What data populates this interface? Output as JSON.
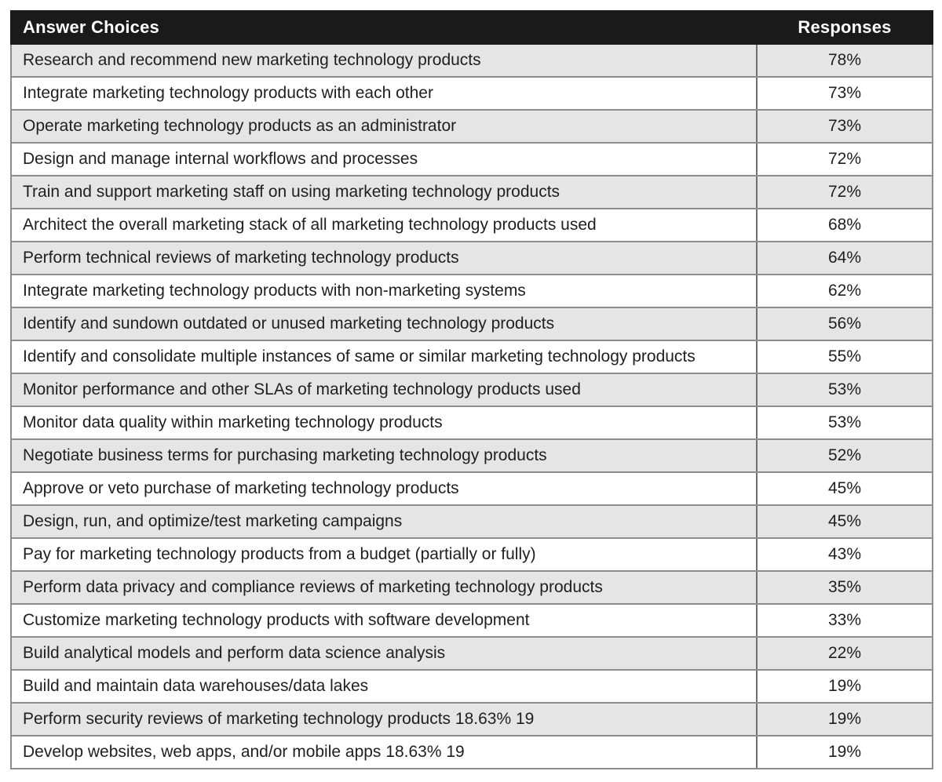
{
  "page": {
    "background": "#ffffff"
  },
  "table": {
    "header": {
      "answer_choices": "Answer Choices",
      "responses": "Responses"
    },
    "rows": [
      {
        "choice": "Research and recommend new marketing technology products",
        "response": "78%"
      },
      {
        "choice": "Integrate marketing technology products with each other",
        "response": "73%"
      },
      {
        "choice": "Operate marketing technology products as an administrator",
        "response": "73%"
      },
      {
        "choice": "Design and manage internal workflows and processes",
        "response": "72%"
      },
      {
        "choice": "Train and support marketing staff on using marketing technology products",
        "response": "72%"
      },
      {
        "choice": "Architect the overall marketing stack of all marketing technology products used",
        "response": "68%"
      },
      {
        "choice": "Perform technical reviews of marketing technology products",
        "response": "64%"
      },
      {
        "choice": "Integrate marketing technology products with non-marketing systems",
        "response": "62%"
      },
      {
        "choice": "Identify and sundown outdated or unused marketing technology products",
        "response": "56%"
      },
      {
        "choice": "Identify and consolidate multiple instances of same or similar marketing technology products",
        "response": "55%"
      },
      {
        "choice": "Monitor performance and other SLAs of marketing technology products used",
        "response": "53%"
      },
      {
        "choice": "Monitor data quality within marketing technology products",
        "response": "53%"
      },
      {
        "choice": "Negotiate business terms for purchasing marketing technology products",
        "response": "52%"
      },
      {
        "choice": "Approve or veto purchase of marketing technology products",
        "response": "45%"
      },
      {
        "choice": "Design, run, and optimize/test marketing campaigns",
        "response": "45%"
      },
      {
        "choice": "Pay for marketing technology products from a budget (partially or fully)",
        "response": "43%"
      },
      {
        "choice": "Perform data privacy and compliance reviews of marketing technology products",
        "response": "35%"
      },
      {
        "choice": "Customize marketing technology products with software development",
        "response": "33%"
      },
      {
        "choice": "Build analytical models and perform data science analysis",
        "response": "22%"
      },
      {
        "choice": "Build and maintain data warehouses/data lakes",
        "response": "19%"
      },
      {
        "choice": "Perform security reviews of marketing technology products 18.63% 19",
        "response": "19%"
      },
      {
        "choice": "Develop websites, web apps, and/or mobile apps 18.63% 19",
        "response": "19%"
      }
    ],
    "colors": {
      "header_bg": "#1a1a1a",
      "header_text": "#ffffff",
      "row_alt_bg": "#e5e5e5",
      "row_bg": "#ffffff",
      "row_border": "#8d8d8d",
      "column_divider": "#6f6f6f",
      "text": "#1f1f1f"
    }
  },
  "chart_data": {
    "type": "table",
    "columns": [
      "Answer Choices",
      "Responses"
    ],
    "categories": [
      "Research and recommend new marketing technology products",
      "Integrate marketing technology products with each other",
      "Operate marketing technology products as an administrator",
      "Design and manage internal workflows and processes",
      "Train and support marketing staff on using marketing technology products",
      "Architect the overall marketing stack of all marketing technology products used",
      "Perform technical reviews of marketing technology products",
      "Integrate marketing technology products with non-marketing systems",
      "Identify and sundown outdated or unused marketing technology products",
      "Identify and consolidate multiple instances of same or similar marketing technology products",
      "Monitor performance and other SLAs of marketing technology products used",
      "Monitor data quality within marketing technology products",
      "Negotiate business terms for purchasing marketing technology products",
      "Approve or veto purchase of marketing technology products",
      "Design, run, and optimize/test marketing campaigns",
      "Pay for marketing technology products from a budget (partially or fully)",
      "Perform data privacy and compliance reviews of marketing technology products",
      "Customize marketing technology products with software development",
      "Build analytical models and perform data science analysis",
      "Build and maintain data warehouses/data lakes",
      "Perform security reviews of marketing technology products 18.63% 19",
      "Develop websites, web apps, and/or mobile apps 18.63% 19"
    ],
    "values": [
      78,
      73,
      73,
      72,
      72,
      68,
      64,
      62,
      56,
      55,
      53,
      53,
      52,
      45,
      45,
      43,
      35,
      33,
      22,
      19,
      19,
      19
    ],
    "values_unit": "%",
    "legend": false,
    "grid": true
  }
}
